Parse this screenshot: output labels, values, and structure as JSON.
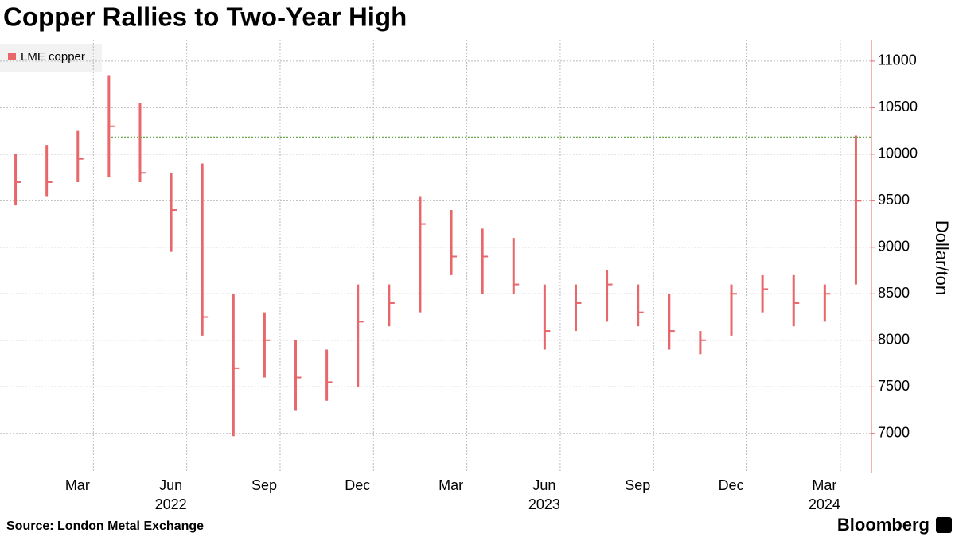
{
  "chart_data": {
    "type": "ohlc",
    "title": "Copper Rallies to Two-Year High",
    "y_label": "Dollar/ton",
    "source": "Source: London Metal Exchange",
    "brand": "Bloomberg",
    "x": [
      "2021-12",
      "2022-01",
      "2022-02",
      "2022-03",
      "2022-04",
      "2022-05",
      "2022-06",
      "2022-07",
      "2022-08",
      "2022-09",
      "2022-10",
      "2022-11",
      "2022-12",
      "2023-01",
      "2023-02",
      "2023-03",
      "2023-04",
      "2023-05",
      "2023-06",
      "2023-07",
      "2023-08",
      "2023-09",
      "2023-10",
      "2023-11",
      "2023-12",
      "2024-01",
      "2024-02",
      "2024-03"
    ],
    "series": [
      {
        "name": "LME copper",
        "color": "#e8676a",
        "high": [
          10000,
          10100,
          10250,
          10850,
          10550,
          9800,
          9900,
          8500,
          8300,
          8000,
          7900,
          8600,
          8600,
          9550,
          9400,
          9200,
          9100,
          8600,
          8600,
          8750,
          8600,
          8500,
          8100,
          8600,
          8700,
          8700,
          8600,
          10200
        ],
        "low": [
          9450,
          9550,
          9700,
          9750,
          9700,
          8950,
          8050,
          6970,
          7600,
          7250,
          7350,
          7500,
          8150,
          8300,
          8700,
          8500,
          8500,
          7900,
          8100,
          8200,
          8150,
          7900,
          7850,
          8050,
          8300,
          8150,
          8200,
          8600
        ],
        "close": [
          9700,
          9700,
          9950,
          10300,
          9800,
          9400,
          8250,
          7700,
          8000,
          7600,
          7550,
          8200,
          8400,
          9250,
          8900,
          8900,
          8600,
          8100,
          8400,
          8600,
          8300,
          8100,
          8000,
          8500,
          8550,
          8400,
          8500,
          9500
        ]
      }
    ],
    "reference_line": {
      "value": 10180,
      "color": "#6aa84f"
    },
    "xlim": [
      "2021-12",
      "2024-04"
    ],
    "xticks": [
      {
        "value": "2022-03",
        "label": "Mar"
      },
      {
        "value": "2022-06",
        "label": "Jun"
      },
      {
        "value": "2022-09",
        "label": "Sep"
      },
      {
        "value": "2022-12",
        "label": "Dec"
      },
      {
        "value": "2023-03",
        "label": "Mar"
      },
      {
        "value": "2023-06",
        "label": "Jun"
      },
      {
        "value": "2023-09",
        "label": "Sep"
      },
      {
        "value": "2023-12",
        "label": "Dec"
      },
      {
        "value": "2024-03",
        "label": "Mar"
      }
    ],
    "x_year_labels": [
      {
        "value": "2022-06",
        "label": "2022"
      },
      {
        "value": "2023-06",
        "label": "2023"
      },
      {
        "value": "2024-03",
        "label": "2024"
      }
    ],
    "ylim": [
      6570,
      11230
    ],
    "yticks": [
      7000,
      7500,
      8000,
      8500,
      9000,
      9500,
      10000,
      10500,
      11000
    ],
    "grid": true
  }
}
